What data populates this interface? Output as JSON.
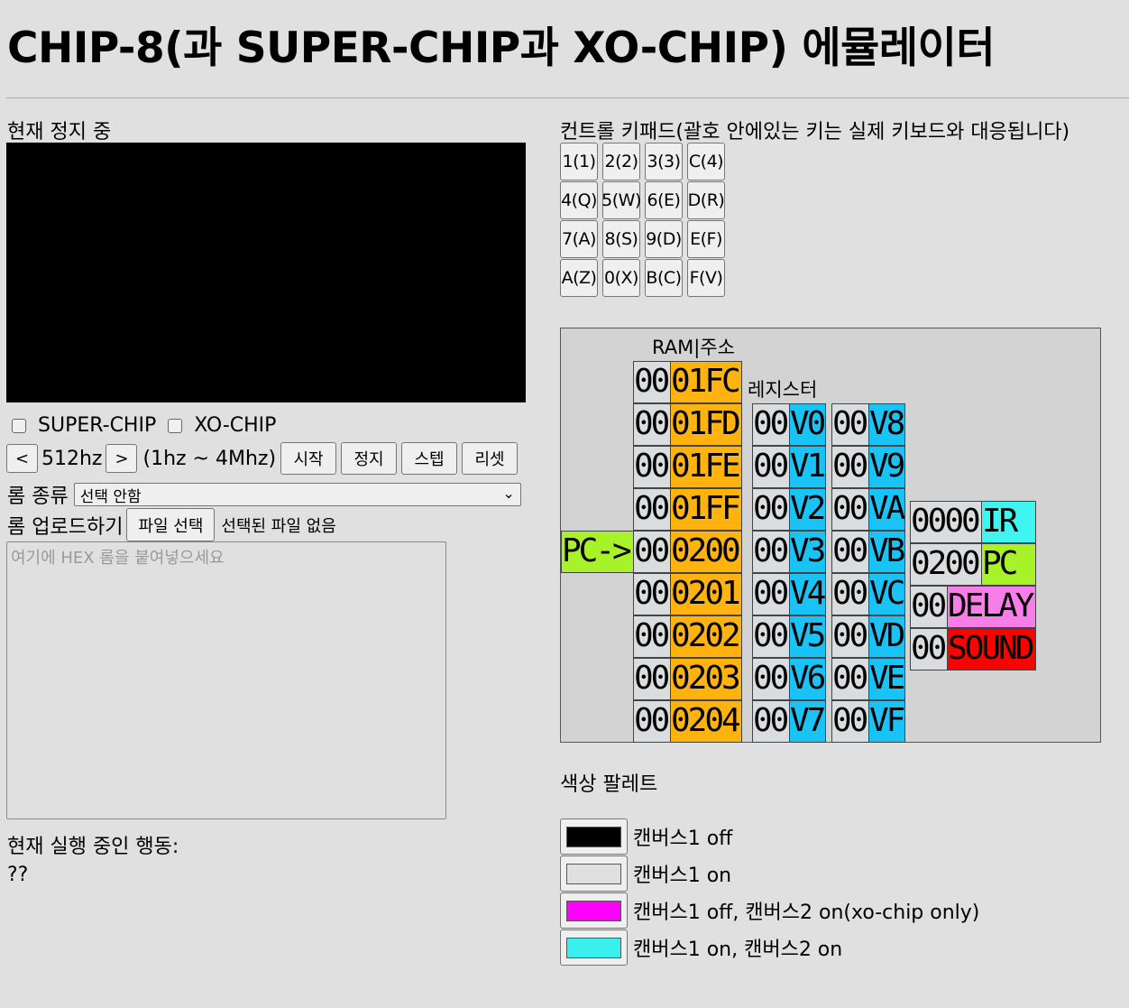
{
  "page_title": "CHIP-8(과 SUPER-CHIP과 XO-CHIP) 에뮬레이터",
  "status_text": "현재 정지 중",
  "modes": {
    "superchip_label": "SUPER-CHIP",
    "xochip_label": "XO-CHIP",
    "superchip_checked": false,
    "xochip_checked": false
  },
  "speed": {
    "dec_label": "<",
    "value": "512hz",
    "inc_label": ">",
    "range": "(1hz ~ 4Mhz)"
  },
  "controls": {
    "start": "시작",
    "stop": "정지",
    "step": "스텝",
    "reset": "리셋"
  },
  "rom": {
    "type_label": "롬 종류",
    "type_selected": "선택 안함",
    "upload_label": "롬 업로드하기",
    "file_button": "파일 선택",
    "file_status": "선택된 파일 없음",
    "hex_placeholder": "여기에 HEX 롬을 붙여넣으세요"
  },
  "running": {
    "label": "현재 실행 중인 행동:",
    "value": "??"
  },
  "keypad": {
    "title": "컨트롤 키패드(괄호 안에있는 키는 실제 키보드와 대응됩니다)",
    "keys": [
      "1(1)",
      "2(2)",
      "3(3)",
      "C(4)",
      "4(Q)",
      "5(W)",
      "6(E)",
      "D(R)",
      "7(A)",
      "8(S)",
      "9(D)",
      "E(F)",
      "A(Z)",
      "0(X)",
      "B(C)",
      "F(V)"
    ]
  },
  "debug": {
    "ram_header": "RAM|주소",
    "reg_header": "레지스터",
    "pc_pointer": "PC->",
    "ram": [
      {
        "val": "00",
        "addr": "01FC"
      },
      {
        "val": "00",
        "addr": "01FD"
      },
      {
        "val": "00",
        "addr": "01FE"
      },
      {
        "val": "00",
        "addr": "01FF"
      },
      {
        "val": "00",
        "addr": "0200"
      },
      {
        "val": "00",
        "addr": "0201"
      },
      {
        "val": "00",
        "addr": "0202"
      },
      {
        "val": "00",
        "addr": "0203"
      },
      {
        "val": "00",
        "addr": "0204"
      }
    ],
    "regs_left": [
      {
        "val": "00",
        "name": "V0"
      },
      {
        "val": "00",
        "name": "V1"
      },
      {
        "val": "00",
        "name": "V2"
      },
      {
        "val": "00",
        "name": "V3"
      },
      {
        "val": "00",
        "name": "V4"
      },
      {
        "val": "00",
        "name": "V5"
      },
      {
        "val": "00",
        "name": "V6"
      },
      {
        "val": "00",
        "name": "V7"
      }
    ],
    "regs_right": [
      {
        "val": "00",
        "name": "V8"
      },
      {
        "val": "00",
        "name": "V9"
      },
      {
        "val": "00",
        "name": "VA"
      },
      {
        "val": "00",
        "name": "VB"
      },
      {
        "val": "00",
        "name": "VC"
      },
      {
        "val": "00",
        "name": "VD"
      },
      {
        "val": "00",
        "name": "VE"
      },
      {
        "val": "00",
        "name": "VF"
      }
    ],
    "special": [
      {
        "val": "0000",
        "name": "IR",
        "color": "#3ff5ef"
      },
      {
        "val": "0200",
        "name": "PC",
        "color": "#a8f22a"
      },
      {
        "val": "00",
        "name": "DELAY",
        "color": "#f77de8"
      },
      {
        "val": "00",
        "name": "SOUND",
        "color": "#ff0000"
      }
    ]
  },
  "palette": {
    "title": "색상 팔레트",
    "entries": [
      {
        "color": "#000000",
        "label": "캔버스1 off"
      },
      {
        "color": "#e0e0e0",
        "label": "캔버스1 on"
      },
      {
        "color": "#ff00ff",
        "label": "캔버스1 off, 캔버스2 on(xo-chip only)"
      },
      {
        "color": "#3af0ee",
        "label": "캔버스1 on, 캔버스2 on"
      }
    ]
  }
}
